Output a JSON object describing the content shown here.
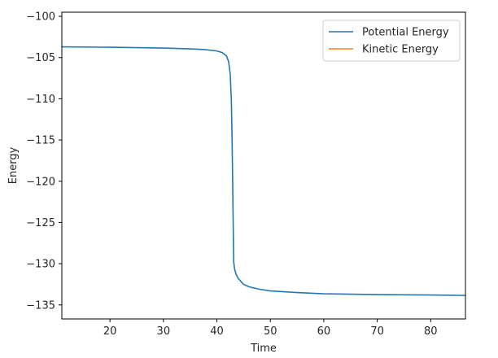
{
  "chart_data": {
    "type": "line",
    "title": "",
    "xlabel": "Time",
    "ylabel": "Energy",
    "xlim": [
      11,
      86.5
    ],
    "ylim": [
      -136.7,
      -99.5
    ],
    "xticks": [
      20,
      30,
      40,
      50,
      60,
      70,
      80
    ],
    "yticks": [
      -100,
      -105,
      -110,
      -115,
      -120,
      -125,
      -130,
      -135
    ],
    "grid": false,
    "legend": "top-right",
    "series": [
      {
        "name": "Potential Energy",
        "color": "#1f77b4",
        "x": [
          11,
          20,
          30,
          35,
          38,
          40,
          41,
          41.8,
          42.2,
          42.5,
          42.7,
          42.85,
          42.95,
          43.05,
          43.15,
          43.3,
          43.6,
          44,
          45,
          46,
          48,
          50,
          55,
          60,
          70,
          80,
          86.5
        ],
        "y": [
          -103.7,
          -103.75,
          -103.85,
          -103.95,
          -104.05,
          -104.2,
          -104.4,
          -104.8,
          -105.5,
          -107,
          -110,
          -115,
          -120,
          -125,
          -129.8,
          -130.6,
          -131.3,
          -131.8,
          -132.5,
          -132.8,
          -133.1,
          -133.3,
          -133.5,
          -133.65,
          -133.75,
          -133.8,
          -133.85
        ]
      },
      {
        "name": "Kinetic Energy",
        "color": "#ff7f0e",
        "x": [],
        "y": []
      }
    ]
  }
}
